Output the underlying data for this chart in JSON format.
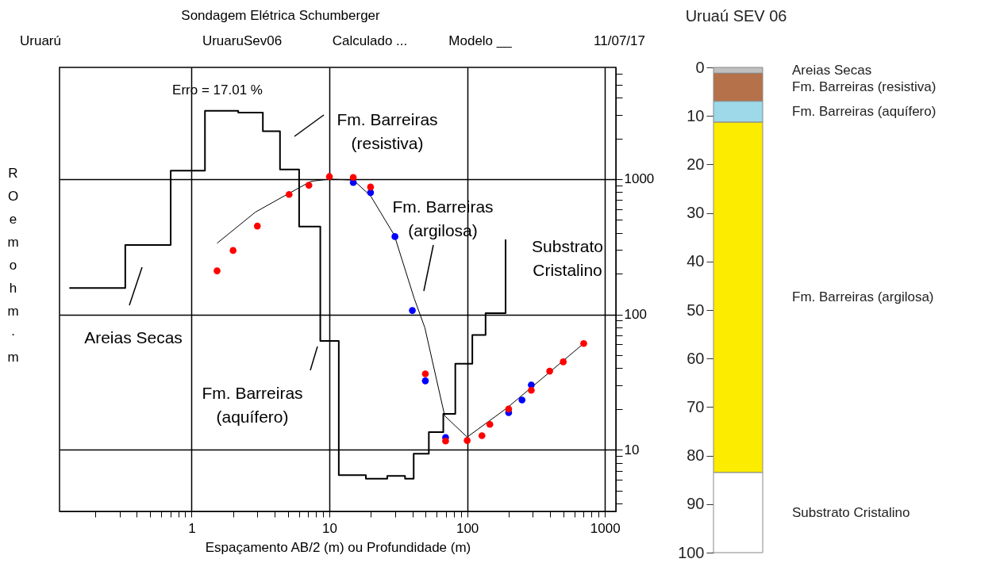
{
  "chart_data": [
    {
      "type": "line",
      "title": "Sondagem Elétrica Schumberger",
      "xlabel": "Espaçamento AB/2 (m) ou Profundidade (m)",
      "ylabel": "RO em ohm·m",
      "log": "xy",
      "grid": true,
      "xlim": [
        0.11,
        1200
      ],
      "ylim": [
        3.5,
        6700
      ],
      "xticks": [
        {
          "value": 0.2,
          "label": null
        },
        {
          "value": 0.3,
          "label": null
        },
        {
          "value": 0.4,
          "label": null
        },
        {
          "value": 0.5,
          "label": null
        },
        {
          "value": 0.6,
          "label": null
        },
        {
          "value": 0.7,
          "label": null
        },
        {
          "value": 0.8,
          "label": null
        },
        {
          "value": 0.9,
          "label": null
        },
        1,
        {
          "value": 2,
          "label": null
        },
        {
          "value": 3,
          "label": null
        },
        {
          "value": 4,
          "label": null
        },
        {
          "value": 5,
          "label": null
        },
        {
          "value": 6,
          "label": null
        },
        {
          "value": 7,
          "label": null
        },
        {
          "value": 8,
          "label": null
        },
        {
          "value": 9,
          "label": null
        },
        10,
        {
          "value": 20,
          "label": null
        },
        {
          "value": 30,
          "label": null
        },
        {
          "value": 40,
          "label": null
        },
        {
          "value": 50,
          "label": null
        },
        {
          "value": 60,
          "label": null
        },
        {
          "value": 70,
          "label": null
        },
        {
          "value": 80,
          "label": null
        },
        {
          "value": 90,
          "label": null
        },
        100,
        {
          "value": 200,
          "label": null
        },
        {
          "value": 300,
          "label": null
        },
        {
          "value": 400,
          "label": null
        },
        {
          "value": 500,
          "label": null
        },
        {
          "value": 600,
          "label": null
        },
        {
          "value": 700,
          "label": null
        },
        {
          "value": 800,
          "label": null
        },
        {
          "value": 900,
          "label": null
        },
        1000
      ],
      "yticks": [
        {
          "value": 4,
          "label": null
        },
        {
          "value": 5,
          "label": null
        },
        {
          "value": 6,
          "label": null
        },
        {
          "value": 7,
          "label": null
        },
        {
          "value": 8,
          "label": null
        },
        {
          "value": 9,
          "label": null
        },
        10,
        {
          "value": 20,
          "label": null
        },
        {
          "value": 30,
          "label": null
        },
        {
          "value": 40,
          "label": null
        },
        {
          "value": 50,
          "label": null
        },
        {
          "value": 60,
          "label": null
        },
        {
          "value": 70,
          "label": null
        },
        {
          "value": 80,
          "label": null
        },
        {
          "value": 90,
          "label": null
        },
        100,
        {
          "value": 200,
          "label": null
        },
        {
          "value": 300,
          "label": null
        },
        {
          "value": 400,
          "label": null
        },
        {
          "value": 500,
          "label": null
        },
        {
          "value": 600,
          "label": null
        },
        {
          "value": 700,
          "label": null
        },
        {
          "value": 800,
          "label": null
        },
        {
          "value": 900,
          "label": null
        },
        1000,
        {
          "value": 2000,
          "label": null
        },
        {
          "value": 3000,
          "label": null
        },
        {
          "value": 4000,
          "label": null
        },
        {
          "value": 5000,
          "label": null
        },
        {
          "value": 6000,
          "label": null
        }
      ],
      "annotations": [
        "Uruarú",
        "UruaruSev06",
        "Calculado ...",
        "Modelo __",
        "11/07/17",
        "Erro =  17.01 %",
        "Fm. Barreiras\n(resistiva)",
        "Fm. Barreiras\n(argilosa)",
        "Substrato\nCristalino",
        "Areias Secas",
        "Fm. Barreiras\n(aquífero)"
      ],
      "series": [
        {
          "type": "step",
          "color": "#000000",
          "x": [
            0.131,
            0.33,
            0.705,
            1.25,
            2.18,
            3.29,
            4.38,
            6.03,
            8.59,
            11.7,
            18.4,
            26.3,
            35.4,
            40.9,
            52.7,
            67.1,
            82,
            109,
            136,
            190
          ],
          "values": [
            157,
            326,
            1155,
            3200,
            3100,
            2260,
            1180,
            446,
            63.8,
            6.5,
            6.1,
            6.4,
            6.1,
            9.35,
            13.5,
            18.4,
            43.2,
            70.5,
            102,
            355
          ]
        },
        {
          "type": "line",
          "color": "#000000",
          "x": [
            1.53,
            2.9,
            4.72,
            7.35,
            10,
            14.9,
            19.9,
            29.6,
            41.3,
            49.3,
            68.7,
            100,
            194,
            701
          ],
          "values": [
            336,
            570,
            753,
            964,
            1000,
            985,
            753,
            385,
            131,
            79.8,
            17.8,
            12.4,
            20.3,
            61
          ]
        },
        {
          "type": "scatter",
          "color": "#0000ff",
          "x": [
            14.9,
            19.9,
            29.9,
            40,
            49.7,
            69.7,
            200,
            250,
            292
          ],
          "values": [
            944,
            796,
            376,
            107,
            32.3,
            12.3,
            18.8,
            23.3,
            30.1
          ]
        },
        {
          "type": "scatter",
          "color": "#ff0000",
          "x": [
            1.53,
            2.0,
            3.0,
            5.1,
            7.1,
            10,
            14.9,
            19.9,
            49.7,
            69.7,
            100,
            128,
            146,
            200,
            292,
            397,
            498,
            701
          ],
          "values": [
            210,
            297,
            450,
            771,
            901,
            1045,
            1030,
            874,
            36.4,
            11.6,
            11.7,
            12.7,
            15.4,
            20.0,
            27.5,
            38.1,
            44.6,
            61
          ]
        }
      ]
    },
    {
      "type": "bar",
      "stacked": true,
      "title": "Uruaú SEV 06",
      "categories": [
        null
      ],
      "ylim": [
        100,
        0
      ],
      "yticks": [
        0,
        10,
        20,
        30,
        40,
        50,
        60,
        70,
        80,
        90,
        100
      ],
      "tick_labels": "y",
      "series": [
        {
          "name": "Areias Secas",
          "color": "#c0c0c0",
          "values": [
            1.2
          ]
        },
        {
          "name": "Fm. Barreiras (resistiva)",
          "color": "#b5714a",
          "values": [
            5.8
          ]
        },
        {
          "name": "Fm. Barreiras (aquífero)",
          "color": "#9dd9e8",
          "values": [
            4.3
          ]
        },
        {
          "name": "Fm. Barreiras (argilosa)",
          "color": "#fbec00",
          "values": [
            72.2
          ]
        },
        {
          "name": "Substrato Cristalino",
          "color": "#ffffff",
          "values": [
            16.5
          ]
        }
      ]
    }
  ]
}
